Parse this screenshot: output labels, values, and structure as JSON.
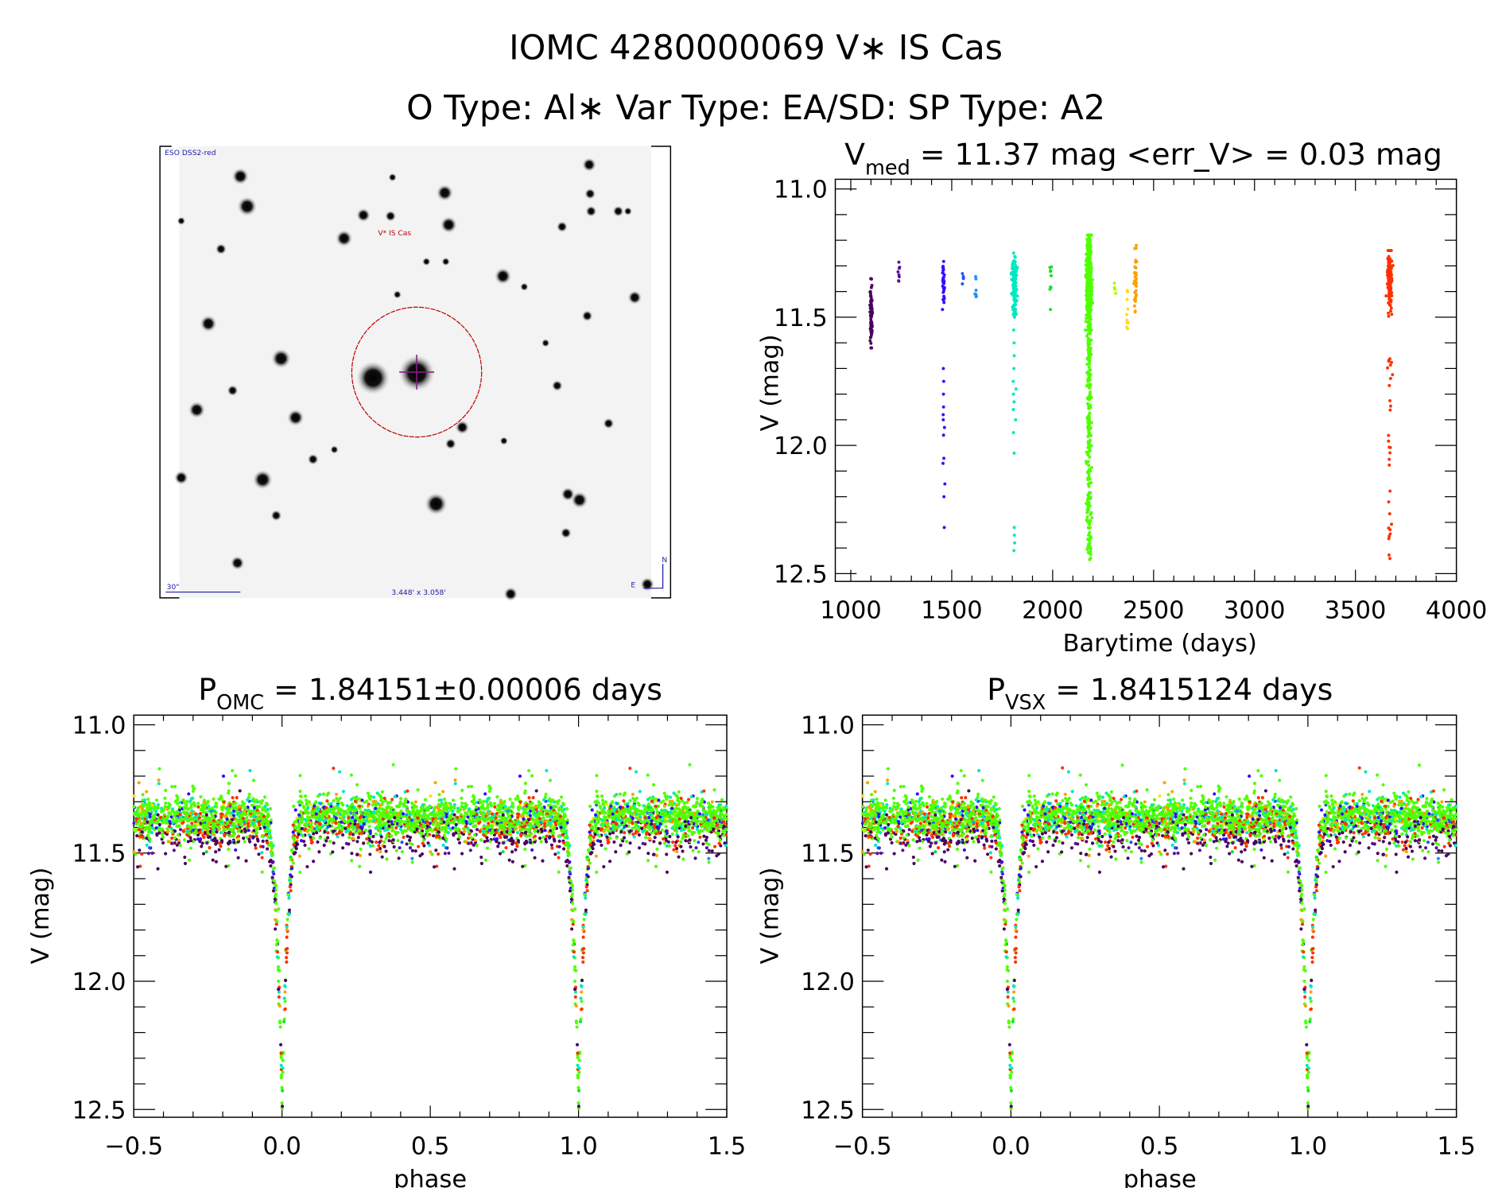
{
  "header": {
    "title_line1": "IOMC 4280000069    V∗ IS Cas",
    "title_line2": "O Type: Al∗  Var Type: EA/SD:  SP Type: A2"
  },
  "sky_image": {
    "survey_label": "ESO DSS2-red",
    "target_label": "V* IS Cas",
    "scale_label": "30\"",
    "field_size_label": "3.448' x 3.058'",
    "north_label": "N",
    "east_label": "E",
    "colors": {
      "circle": "#c00000",
      "crosshair": "#8a1a8a",
      "labels": "#1a1aa8"
    }
  },
  "chart_data": [
    {
      "type": "scatter",
      "id": "lightcurve",
      "title_main": "V",
      "title_sub": "med",
      "title_rest": " = 11.37 mag <err_V> = 0.03 mag",
      "xlabel": "Barytime (days)",
      "ylabel": "V (mag)",
      "xlim": [
        1000,
        4000
      ],
      "ylim": [
        11.0,
        12.5
      ],
      "y_inverted": true,
      "xticks": [
        "1000",
        "1500",
        "2000",
        "2500",
        "3000",
        "3500",
        "4000"
      ],
      "yticks": [
        "11.0",
        "11.5",
        "12.0",
        "12.5"
      ],
      "segments": [
        {
          "t": 1100,
          "mag_range": [
            11.35,
            11.62
          ],
          "n": 90,
          "color": "#4a0060"
        },
        {
          "t": 1240,
          "mag_range": [
            11.27,
            11.37
          ],
          "n": 8,
          "color": "#5a10a0"
        },
        {
          "t": 1460,
          "mag_range": [
            11.27,
            11.47
          ],
          "n": 45,
          "color": "#3010ff",
          "outliers": [
            11.7,
            11.75,
            11.8,
            11.85,
            11.88,
            11.9,
            11.93,
            11.96,
            12.05,
            12.07,
            12.15,
            12.2,
            12.32
          ]
        },
        {
          "t": 1555,
          "mag_range": [
            11.33,
            11.37
          ],
          "n": 5,
          "color": "#2050ff"
        },
        {
          "t": 1620,
          "mag_range": [
            11.33,
            11.42
          ],
          "n": 7,
          "color": "#2090ff"
        },
        {
          "t": 1810,
          "mag_range": [
            11.25,
            11.5
          ],
          "n": 110,
          "color": "#00e8c0",
          "outliers": [
            11.55,
            11.6,
            11.65,
            11.7,
            11.75,
            11.78,
            11.8,
            11.83,
            11.86,
            11.9,
            11.95,
            12.03,
            12.32,
            12.35,
            12.38,
            12.41
          ]
        },
        {
          "t": 1990,
          "mag_range": [
            11.28,
            11.42
          ],
          "n": 8,
          "color": "#10e030",
          "outliers": [
            11.47
          ]
        },
        {
          "t": 2180,
          "mag_range": [
            11.18,
            11.55
          ],
          "n": 600,
          "color": "#50ff00",
          "tail": [
            11.55,
            12.45
          ],
          "tail_n": 220
        },
        {
          "t": 2310,
          "mag_range": [
            11.36,
            11.42
          ],
          "n": 6,
          "color": "#a8ff00"
        },
        {
          "t": 2370,
          "mag_range": [
            11.33,
            11.55
          ],
          "n": 10,
          "color": "#ffe000"
        },
        {
          "t": 2410,
          "mag_range": [
            11.22,
            11.48
          ],
          "n": 40,
          "color": "#ffa000"
        },
        {
          "t": 3670,
          "mag_range": [
            11.24,
            11.5
          ],
          "n": 130,
          "color": "#ff3000",
          "tail": [
            11.65,
            12.45
          ],
          "tail_n": 30
        }
      ]
    },
    {
      "type": "scatter",
      "id": "phase-omc",
      "title_main": "P",
      "title_sub": "OMC",
      "title_rest": " = 1.84151±0.00006 days",
      "xlabel": "phase",
      "ylabel": "V (mag)",
      "xlim": [
        -0.5,
        1.5
      ],
      "ylim": [
        11.0,
        12.5
      ],
      "y_inverted": true,
      "xticks": [
        "−0.5",
        "0.0",
        "0.5",
        "1.0",
        "1.5"
      ],
      "yticks": [
        "11.0",
        "11.5",
        "12.0",
        "12.5"
      ],
      "model": {
        "baseline": 11.36,
        "scatter": 0.05,
        "primary_eclipse_phase": 0.0,
        "primary_min_mag": 12.45,
        "eclipse_halfwidth_phase": 0.07
      }
    },
    {
      "type": "scatter",
      "id": "phase-vsx",
      "title_main": "P",
      "title_sub": "VSX",
      "title_rest": " = 1.8415124 days",
      "xlabel": "phase",
      "ylabel": "V (mag)",
      "xlim": [
        -0.5,
        1.5
      ],
      "ylim": [
        11.0,
        12.5
      ],
      "y_inverted": true,
      "xticks": [
        "−0.5",
        "0.0",
        "0.5",
        "1.0",
        "1.5"
      ],
      "yticks": [
        "11.0",
        "11.5",
        "12.0",
        "12.5"
      ],
      "model": {
        "baseline": 11.36,
        "scatter": 0.05,
        "primary_eclipse_phase": 0.0,
        "primary_min_mag": 12.45,
        "eclipse_halfwidth_phase": 0.07
      }
    }
  ]
}
